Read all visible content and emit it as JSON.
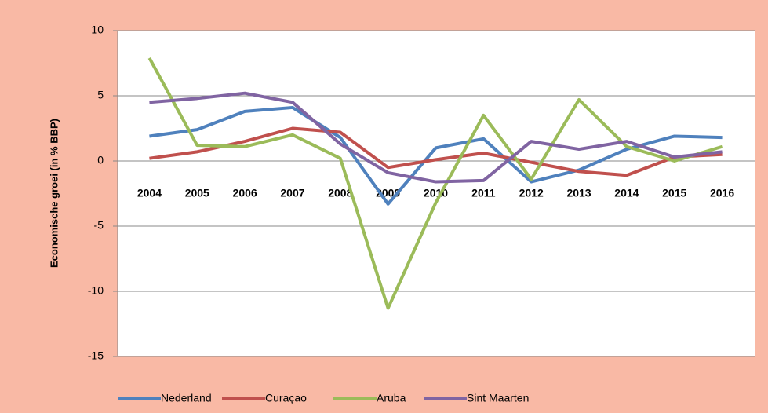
{
  "chart_data": {
    "type": "line",
    "y_label": "Economische groei (in % BBP)",
    "categories": [
      "2004",
      "2005",
      "2006",
      "2007",
      "2008",
      "2009",
      "2010",
      "2011",
      "2012",
      "2013",
      "2014",
      "2015",
      "2016"
    ],
    "series": [
      {
        "name": "Nederland",
        "color": "#4f81bd",
        "values": [
          1.9,
          2.4,
          3.8,
          4.1,
          1.8,
          -3.3,
          1.0,
          1.7,
          -1.6,
          -0.7,
          0.9,
          1.9,
          1.8
        ]
      },
      {
        "name": "Curaçao",
        "color": "#c0504d",
        "values": [
          0.2,
          0.7,
          1.5,
          2.5,
          2.2,
          -0.5,
          0.1,
          0.6,
          -0.1,
          -0.8,
          -1.1,
          0.3,
          0.5
        ]
      },
      {
        "name": "Aruba",
        "color": "#9bbb59",
        "values": [
          7.9,
          1.2,
          1.1,
          2.0,
          0.2,
          -11.3,
          -3.2,
          3.5,
          -1.4,
          4.7,
          1.1,
          0.0,
          1.1
        ]
      },
      {
        "name": "Sint Maarten",
        "color": "#8064a2",
        "values": [
          4.5,
          4.8,
          5.2,
          4.5,
          1.3,
          -0.9,
          -1.6,
          -1.5,
          1.5,
          0.9,
          1.5,
          0.3,
          0.7
        ]
      }
    ],
    "ylim": [
      -15,
      10
    ],
    "yticks": [
      -15,
      -10,
      -5,
      0,
      5,
      10
    ],
    "grid": true,
    "legend": "bottom"
  }
}
